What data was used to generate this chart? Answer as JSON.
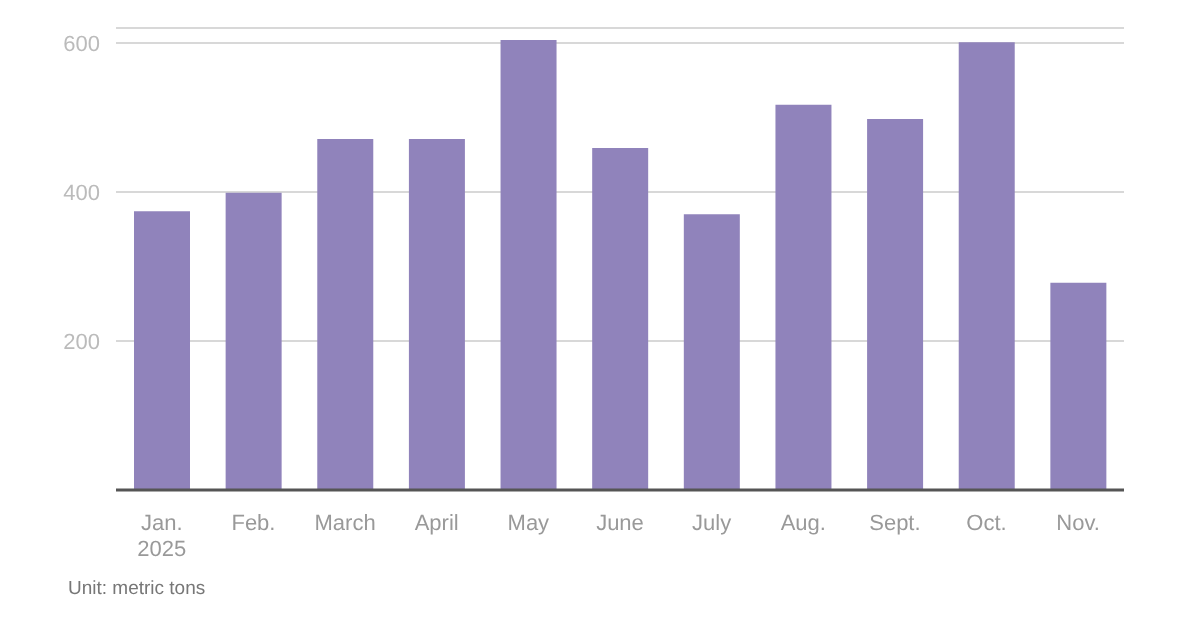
{
  "chart_data": {
    "type": "bar",
    "categories": [
      "Jan.\n2025",
      "Feb.",
      "March",
      "April",
      "May",
      "June",
      "July",
      "Aug.",
      "Sept.",
      "Oct.",
      "Nov."
    ],
    "values": [
      374,
      399,
      471,
      471,
      604,
      459,
      370,
      517,
      498,
      601,
      278
    ],
    "color": "#9083bb",
    "ylim": [
      0,
      620
    ],
    "yticks": [
      200,
      400,
      600
    ],
    "grid": "y",
    "legend": false,
    "annotations": [
      "Unit: metric tons"
    ]
  }
}
